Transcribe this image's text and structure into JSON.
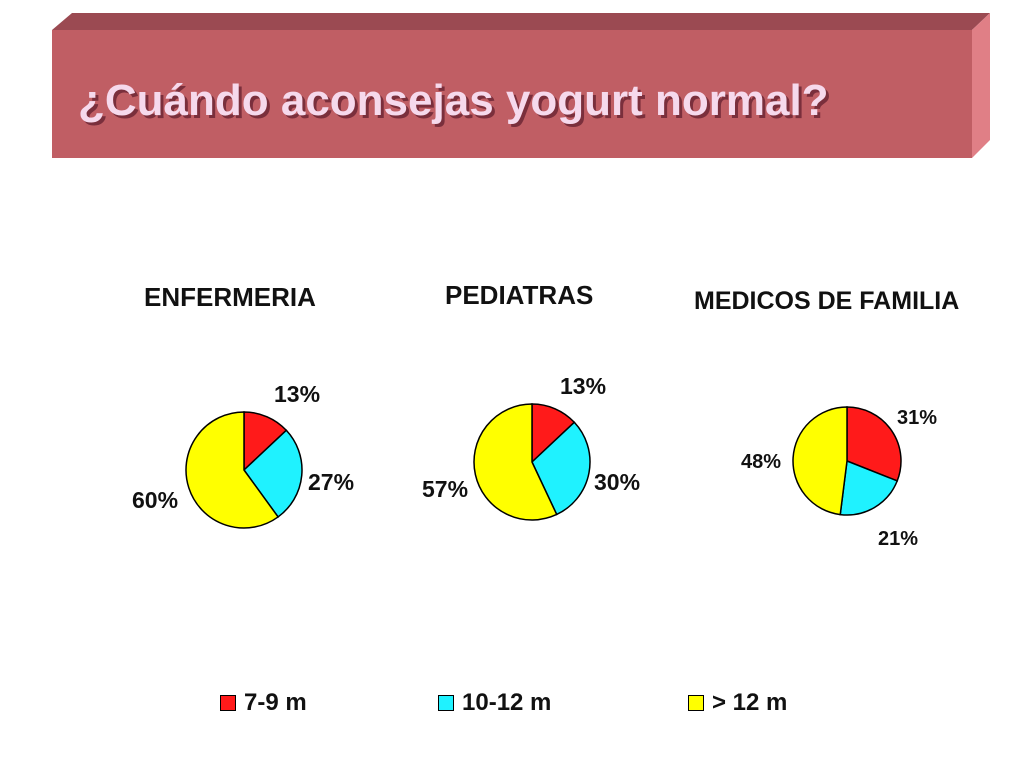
{
  "slide": {
    "title": "¿Cuándo aconsejas yogurt normal?"
  },
  "colors": {
    "title_box": "#c05e64",
    "title_box_top": "#9b4a52",
    "title_box_side": "#e07f86",
    "series": [
      "#ff1a1a",
      "#1ff2ff",
      "#ffff00"
    ]
  },
  "chart_data": [
    {
      "type": "pie",
      "title": "ENFERMERIA",
      "categories": [
        "7-9 m",
        "10-12 m",
        "> 12 m"
      ],
      "values": [
        13,
        27,
        60
      ],
      "labels": [
        "13%",
        "27%",
        "60%"
      ]
    },
    {
      "type": "pie",
      "title": "PEDIATRAS",
      "categories": [
        "7-9 m",
        "10-12 m",
        "> 12 m"
      ],
      "values": [
        13,
        30,
        57
      ],
      "labels": [
        "13%",
        "30%",
        "57%"
      ]
    },
    {
      "type": "pie",
      "title": "MEDICOS DE FAMILIA",
      "categories": [
        "7-9 m",
        "10-12 m",
        "> 12 m"
      ],
      "values": [
        31,
        21,
        48
      ],
      "labels": [
        "31%",
        "21%",
        "48%"
      ]
    }
  ],
  "legend": {
    "placement": "bottom",
    "items": [
      {
        "label": "7-9 m",
        "color": "#ff1a1a"
      },
      {
        "label": "10-12 m",
        "color": "#1ff2ff"
      },
      {
        "label": "> 12 m",
        "color": "#ffff00"
      }
    ]
  }
}
